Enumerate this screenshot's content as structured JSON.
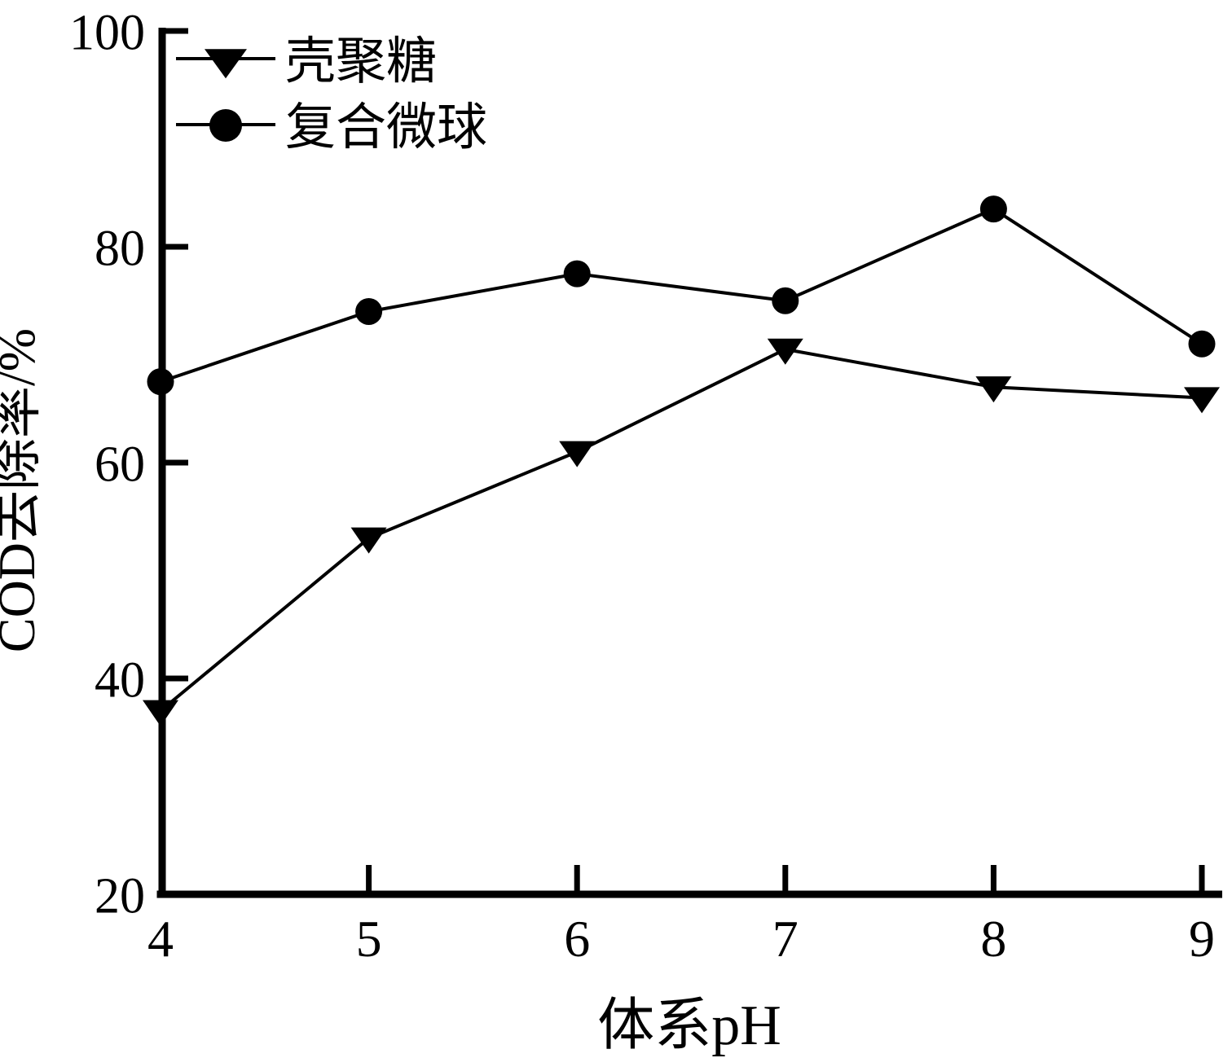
{
  "figure": {
    "background_color": "#ffffff",
    "ink_color": "#000000"
  },
  "chart_data": {
    "type": "line",
    "title": "",
    "xlabel": "体系pH",
    "ylabel": "COD去除率/%",
    "x": [
      4,
      5,
      6,
      7,
      8,
      9
    ],
    "xlim": [
      4,
      9
    ],
    "ylim": [
      20,
      100
    ],
    "x_ticks": [
      4,
      5,
      6,
      7,
      8,
      9
    ],
    "y_ticks": [
      20,
      40,
      60,
      80,
      100
    ],
    "grid": false,
    "legend": {
      "position": "top-left-inside",
      "entries": [
        "壳聚糖",
        "复合微球"
      ]
    },
    "series": [
      {
        "name": "壳聚糖",
        "marker": "triangle-down",
        "line_color": "#000000",
        "values": [
          37,
          53,
          61,
          70.5,
          67,
          66
        ]
      },
      {
        "name": "复合微球",
        "marker": "circle",
        "line_color": "#000000",
        "values": [
          67.5,
          74,
          77.5,
          75,
          83.5,
          71
        ]
      }
    ]
  }
}
